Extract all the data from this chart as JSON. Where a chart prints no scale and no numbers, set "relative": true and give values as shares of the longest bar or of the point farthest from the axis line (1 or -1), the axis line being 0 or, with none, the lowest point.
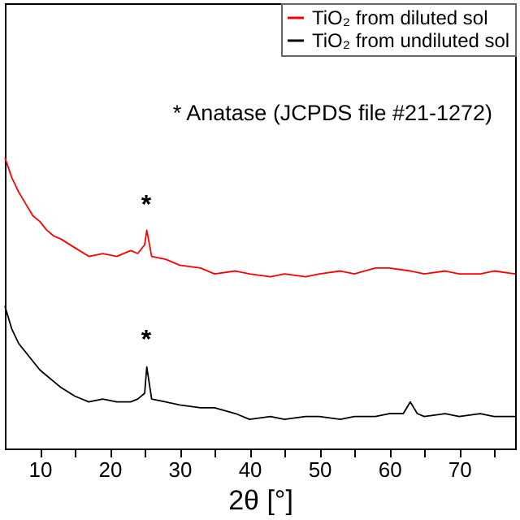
{
  "chart_data": {
    "type": "line",
    "relative": true,
    "xlabel": "2θ [°]",
    "xlim": [
      5,
      78
    ],
    "xticks": [
      10,
      {
        "value": 15,
        "label": null
      },
      20,
      {
        "value": 25,
        "label": null
      },
      30,
      {
        "value": 35,
        "label": null
      },
      40,
      {
        "value": 45,
        "label": null
      },
      50,
      {
        "value": 55,
        "label": null
      },
      60,
      {
        "value": 65,
        "label": null
      },
      70,
      {
        "value": 75,
        "label": null
      }
    ],
    "legend": "top right",
    "grid": false,
    "annotations": [
      "* Anatase (JCPDS file #21-1272)",
      "*",
      "*"
    ],
    "series": [
      {
        "name": "TiO₂ from diluted sol",
        "color": "#ff0000",
        "x": [
          5,
          6,
          7,
          8,
          9,
          10,
          11,
          12,
          13,
          15,
          17,
          19,
          21,
          23,
          24,
          25,
          25.3,
          26,
          28,
          30,
          33,
          35,
          38,
          40,
          43,
          45,
          48,
          50,
          53,
          55,
          58,
          60,
          63,
          65,
          68,
          70,
          73,
          75,
          78
        ],
        "values": [
          1.0,
          0.93,
          0.88,
          0.84,
          0.8,
          0.78,
          0.75,
          0.73,
          0.72,
          0.69,
          0.66,
          0.67,
          0.66,
          0.68,
          0.67,
          0.7,
          0.75,
          0.66,
          0.65,
          0.63,
          0.62,
          0.6,
          0.61,
          0.6,
          0.59,
          0.6,
          0.59,
          0.6,
          0.61,
          0.6,
          0.62,
          0.62,
          0.61,
          0.6,
          0.61,
          0.6,
          0.6,
          0.61,
          0.6
        ]
      },
      {
        "name": "TiO₂ from undiluted sol",
        "color": "#000000",
        "x": [
          5,
          6,
          7,
          8,
          9,
          10,
          11,
          12,
          13,
          15,
          17,
          19,
          21,
          23,
          24,
          25,
          25.3,
          26,
          28,
          30,
          33,
          35,
          38,
          40,
          43,
          45,
          48,
          50,
          53,
          55,
          58,
          60,
          62,
          63,
          64,
          65,
          68,
          70,
          73,
          75,
          78
        ],
        "values": [
          0.49,
          0.41,
          0.36,
          0.33,
          0.3,
          0.27,
          0.25,
          0.23,
          0.21,
          0.18,
          0.16,
          0.17,
          0.16,
          0.16,
          0.17,
          0.19,
          0.28,
          0.17,
          0.16,
          0.15,
          0.14,
          0.14,
          0.12,
          0.1,
          0.11,
          0.1,
          0.11,
          0.11,
          0.1,
          0.11,
          0.11,
          0.12,
          0.12,
          0.16,
          0.12,
          0.11,
          0.12,
          0.11,
          0.12,
          0.11,
          0.11
        ]
      }
    ]
  }
}
